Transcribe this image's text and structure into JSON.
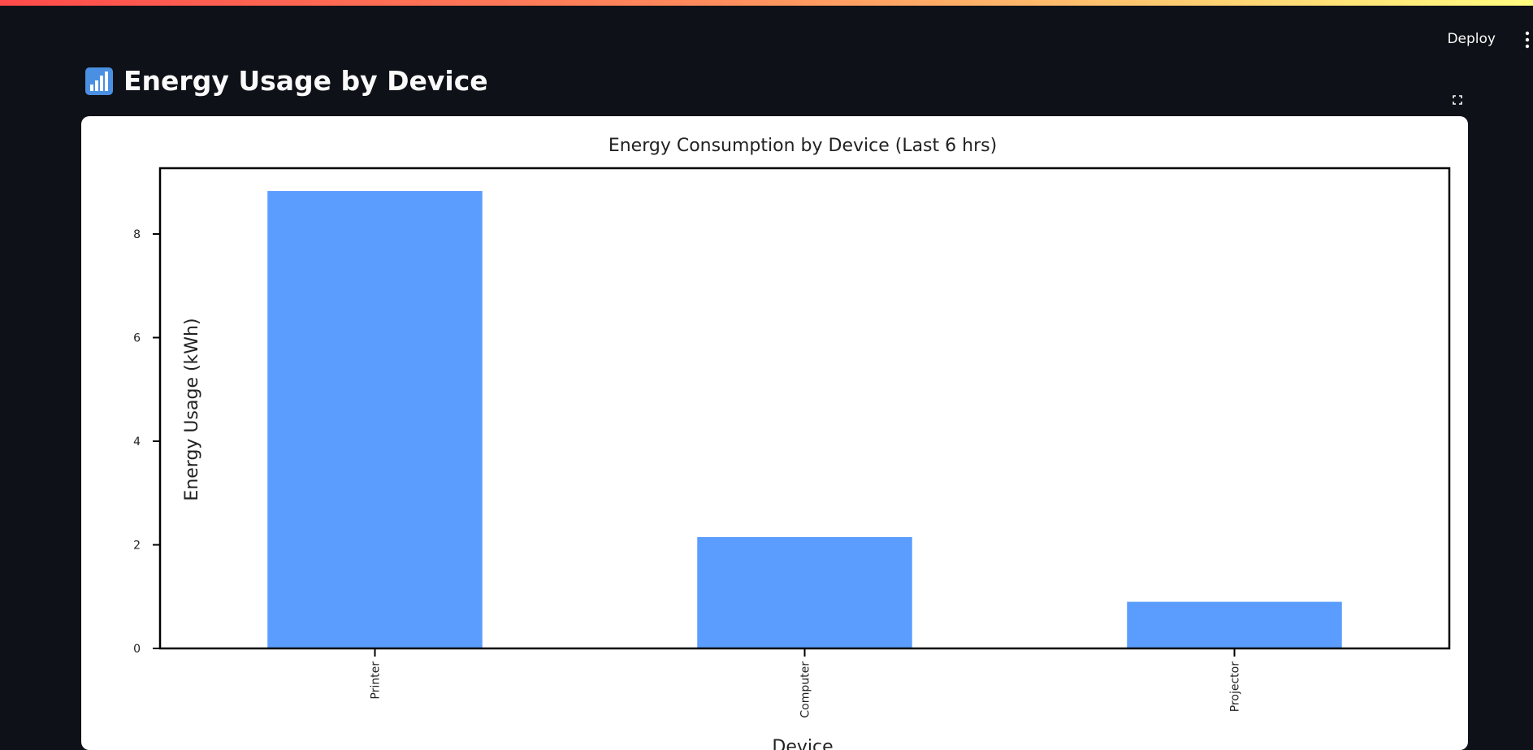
{
  "header": {
    "deploy_label": "Deploy",
    "menu_icon": "vertical-ellipsis-icon"
  },
  "page": {
    "title": "Energy Usage by Device",
    "title_icon": "bar-chart-icon",
    "fullscreen_icon": "fullscreen-icon"
  },
  "colors": {
    "background": "#0e1117",
    "bar": "#5b9dfe",
    "text": "#fafafa"
  },
  "chart_data": {
    "type": "bar",
    "title": "Energy Consumption by Device (Last 6 hrs)",
    "categories": [
      "Printer",
      "Computer",
      "Projector"
    ],
    "values": [
      8.83,
      2.15,
      0.9
    ],
    "xlabel": "Device",
    "ylabel": "Energy Usage (kWh)",
    "yticks": [
      0,
      2,
      4,
      6,
      8
    ],
    "ylim": [
      0,
      9.27
    ],
    "grid": false
  }
}
